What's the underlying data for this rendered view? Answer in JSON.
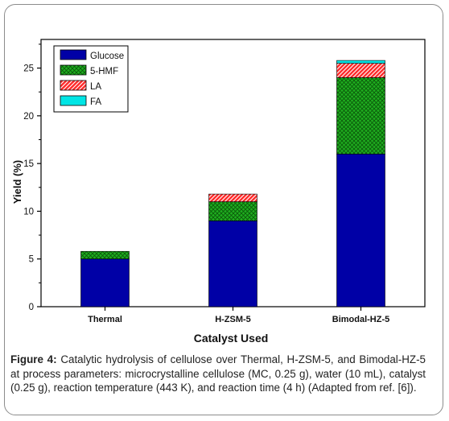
{
  "chart_data": {
    "type": "bar",
    "stacked": true,
    "categories": [
      "Thermal",
      "H-ZSM-5",
      "Bimodal-HZ-5"
    ],
    "series": [
      {
        "name": "Glucose",
        "values": [
          5.0,
          9.0,
          16.0
        ],
        "color": "#0000a6",
        "pattern": "solid"
      },
      {
        "name": "5-HMF",
        "values": [
          0.8,
          2.0,
          8.0
        ],
        "color": "#16a316",
        "pattern": "crosshatch"
      },
      {
        "name": "LA",
        "values": [
          0.0,
          0.8,
          1.5
        ],
        "color": "#ff2a2a",
        "pattern": "diagonal"
      },
      {
        "name": "FA",
        "values": [
          0.0,
          0.0,
          0.3
        ],
        "color": "#00e5e5",
        "pattern": "solid"
      }
    ],
    "xlabel": "Catalyst Used",
    "ylabel": "Yield (%)",
    "ylim": [
      0,
      28
    ],
    "yticks": [
      0,
      5,
      10,
      15,
      20,
      25
    ],
    "grid": false,
    "legend_position": "top-left"
  },
  "caption": {
    "label": "Figure 4:",
    "text": " Catalytic hydrolysis of cellulose over Thermal, H-ZSM-5, and Bimodal-HZ-5 at process parameters: microcrystalline cellulose (MC, 0.25 g), water (10 mL), catalyst (0.25 g), reaction temperature (443 K), and reaction time (4 h) (Adapted from ref. [6])."
  }
}
